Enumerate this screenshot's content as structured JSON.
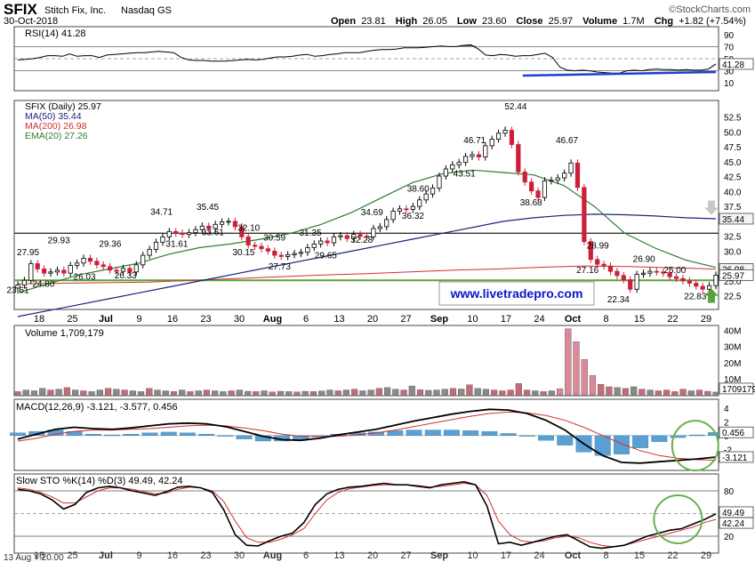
{
  "header": {
    "symbol": "SFIX",
    "company": "Stitch Fix, Inc.",
    "exchange": "Nasdaq GS",
    "date": "30-Oct-2018",
    "open_label": "Open",
    "open": "23.81",
    "high_label": "High",
    "high": "26.05",
    "low_label": "Low",
    "low": "23.60",
    "close_label": "Close",
    "close": "25.97",
    "volume_label": "Volume",
    "volume": "1.7M",
    "chg_label": "Chg",
    "chg": "+1.82 (+7.54%)",
    "watermark": "©StockCharts.com"
  },
  "colors": {
    "up": "#000000",
    "down": "#cc1f3a",
    "ma50": "#1a237e",
    "ma200": "#d32f2f",
    "ema20": "#2e7d32",
    "support": "#5aa33a",
    "resistance": "#333333",
    "rsi_fill": "#4a7a52",
    "rsi_trend": "#1f3fd1",
    "macd_hist": "#5aa0d2",
    "circle": "#6ab04c",
    "arrow_up": "#5aa33a",
    "arrow_down": "#c8c8c8",
    "link": "#0a14c8"
  },
  "x_axis": {
    "labels": [
      "18",
      "25",
      "Jul",
      "9",
      "16",
      "23",
      "30",
      "Aug",
      "6",
      "13",
      "20",
      "27",
      "Sep",
      "10",
      "17",
      "24",
      "Oct",
      "8",
      "15",
      "22",
      "29"
    ],
    "bold": [
      "Jul",
      "Aug",
      "Sep",
      "Oct"
    ],
    "footer_note": "13 Aug Y:20.00"
  },
  "chart_data": [
    {
      "type": "line",
      "panel": "rsi",
      "title": "RSI(14) 41.28",
      "yticks": [
        "90",
        "70",
        "50",
        "30",
        "10"
      ],
      "ylim": [
        0,
        100
      ],
      "levels": [
        70,
        30
      ],
      "last_label": "41.28",
      "series": [
        {
          "name": "RSI(14)",
          "values": [
            48,
            49,
            50,
            52,
            55,
            55,
            54,
            58,
            54,
            55,
            55,
            52,
            56,
            57,
            58,
            59,
            60,
            60,
            61,
            62,
            61,
            60,
            52,
            48,
            47,
            47,
            46,
            46,
            46,
            47,
            48,
            49,
            48,
            49,
            51,
            53,
            53,
            54,
            56,
            57,
            54,
            55,
            57,
            58,
            60,
            60,
            60,
            62,
            64,
            65,
            65,
            66,
            68,
            68,
            68,
            69,
            70,
            71,
            70,
            70,
            72,
            73,
            66,
            56,
            55,
            57,
            56,
            54,
            55,
            55,
            57,
            59,
            52,
            36,
            31,
            30,
            31,
            30,
            28,
            27,
            26,
            26,
            30,
            31,
            30,
            32,
            33,
            32,
            32,
            31,
            32,
            31,
            31,
            33,
            41.28
          ]
        }
      ],
      "annotation": {
        "type": "trendline",
        "from": [
          68,
          22
        ],
        "to": [
          94,
          28
        ]
      }
    },
    {
      "type": "candlestick",
      "panel": "price",
      "legend": [
        "SFIX (Daily) 25.97",
        "MA(50) 35.44",
        "MA(200) 26.98",
        "EMA(20) 27.26"
      ],
      "yticks": [
        "52.5",
        "50.0",
        "47.5",
        "45.0",
        "42.5",
        "40.0",
        "37.5",
        "32.5",
        "30.0",
        "27.5",
        "25.0",
        "22.5"
      ],
      "ylim": [
        20.5,
        55
      ],
      "close": [
        24.3,
        25.1,
        27.9,
        27.0,
        26.3,
        26.5,
        26.8,
        26.3,
        27.6,
        28.0,
        28.8,
        28.3,
        27.7,
        27.4,
        26.8,
        26.6,
        27.1,
        26.5,
        27.7,
        29.3,
        30.3,
        31.5,
        32.4,
        33.3,
        33.0,
        32.8,
        33.1,
        33.6,
        34.2,
        33.8,
        34.5,
        34.9,
        35.0,
        34.1,
        32.4,
        31.0,
        30.8,
        30.4,
        30.0,
        29.3,
        29.1,
        29.4,
        29.6,
        29.8,
        30.6,
        31.2,
        31.7,
        31.4,
        32.4,
        32.6,
        32.1,
        32.8,
        32.5,
        32.4,
        33.8,
        34.1,
        35.3,
        36.7,
        37.1,
        37.0,
        37.5,
        38.6,
        39.6,
        40.6,
        42.6,
        43.8,
        44.5,
        44.9,
        45.9,
        46.2,
        45.8,
        47.7,
        48.8,
        49.8,
        50.3,
        47.9,
        43.3,
        41.6,
        40.1,
        39.0,
        41.8,
        41.9,
        42.3,
        43.1,
        44.8,
        40.7,
        31.6,
        28.6,
        27.8,
        27.5,
        26.6,
        25.9,
        25.2,
        23.6,
        26.1,
        26.3,
        26.6,
        26.5,
        26.3,
        25.7,
        25.4,
        25.0,
        24.6,
        24.1,
        23.6,
        24.2,
        25.97
      ],
      "ma50": [
        19,
        20,
        21,
        22,
        23,
        24,
        25,
        26,
        27,
        28,
        29,
        30,
        31,
        32,
        33,
        34,
        35,
        35.6,
        36,
        36.2,
        36.1,
        35.9,
        35.6,
        35.44
      ],
      "ma200": [
        24.5,
        24.6,
        24.7,
        24.8,
        25.1,
        25.4,
        25.7,
        26.0,
        26.2,
        26.5,
        26.8,
        27.0,
        27.3,
        27.5,
        27.4,
        27.2,
        26.98
      ],
      "ema20": [
        23,
        24.5,
        26,
        27,
        28,
        29.5,
        30.6,
        31.2,
        32,
        33,
        34.5,
        36.5,
        39,
        41.5,
        43,
        43.6,
        43.2,
        42.8,
        41,
        37.5,
        33,
        30.5,
        28.5,
        27.26
      ],
      "labels": [
        {
          "text": "23.61",
          "i": 0,
          "v": 23.0
        },
        {
          "text": "27.95",
          "i": 2,
          "v": 29.3
        },
        {
          "text": "24.80",
          "i": 5,
          "v": 24.0
        },
        {
          "text": "29.93",
          "i": 8,
          "v": 31.3
        },
        {
          "text": "26.03",
          "i": 13,
          "v": 25.2
        },
        {
          "text": "29.36",
          "i": 18,
          "v": 30.7
        },
        {
          "text": "26.33",
          "i": 21,
          "v": 25.4
        },
        {
          "text": "34.71",
          "i": 28,
          "v": 36.1
        },
        {
          "text": "31.61",
          "i": 31,
          "v": 30.7
        },
        {
          "text": "35.45",
          "i": 37,
          "v": 36.9
        },
        {
          "text": "33.61",
          "i": 38,
          "v": 32.7
        },
        {
          "text": "32.10",
          "i": 45,
          "v": 33.4
        },
        {
          "text": "30.15",
          "i": 44,
          "v": 29.3
        },
        {
          "text": "30.59",
          "i": 50,
          "v": 31.8
        },
        {
          "text": "27.73",
          "i": 51,
          "v": 26.9
        },
        {
          "text": "31.35",
          "i": 57,
          "v": 32.6
        },
        {
          "text": "29.65",
          "i": 60,
          "v": 28.8
        },
        {
          "text": "34.69",
          "i": 69,
          "v": 36.0
        },
        {
          "text": "32.28",
          "i": 67,
          "v": 31.4
        },
        {
          "text": "38.60",
          "i": 78,
          "v": 40.0
        },
        {
          "text": "36.32",
          "i": 77,
          "v": 35.4
        },
        {
          "text": "46.71",
          "i": 89,
          "v": 48.1
        },
        {
          "text": "43.51",
          "i": 87,
          "v": 42.5
        },
        {
          "text": "52.44",
          "i": 97,
          "v": 53.8
        },
        {
          "text": "38.68",
          "i": 100,
          "v": 37.7
        },
        {
          "text": "46.67",
          "i": 107,
          "v": 48.1
        },
        {
          "text": "28.99",
          "i": 113,
          "v": 30.4
        },
        {
          "text": "27.16",
          "i": 111,
          "v": 26.3
        },
        {
          "text": "22.34",
          "i": 117,
          "v": 21.4
        },
        {
          "text": "26.90",
          "i": 122,
          "v": 28.2
        },
        {
          "text": "25.00",
          "i": 128,
          "v": 26.3
        },
        {
          "text": "22.83",
          "i": 132,
          "v": 21.9
        }
      ],
      "levels": {
        "resistance": 33.0,
        "support": 25.1
      },
      "last_labels": [
        {
          "text": "35.44",
          "v": 35.44
        },
        {
          "text": "26.98",
          "v": 27.0
        },
        {
          "text": "25.97",
          "v": 25.97
        }
      ],
      "watermark_link": "www.livetradepro.com"
    },
    {
      "type": "bar",
      "panel": "volume",
      "title": "Volume 1,709,179",
      "yticks": [
        "40M",
        "30M",
        "20M",
        "10M"
      ],
      "ylim": [
        0,
        42
      ],
      "last_label": "1709179",
      "values": [
        2,
        3,
        2.5,
        4,
        3,
        3.5,
        4.5,
        3,
        2.5,
        2,
        3,
        4,
        3.5,
        3,
        2.5,
        2,
        4,
        3,
        2.5,
        2,
        3,
        2,
        2.5,
        3,
        2.5,
        2,
        2.5,
        3,
        2.2,
        2,
        2.5,
        1.8,
        2.2,
        2,
        1.8,
        2.2,
        2,
        2.4,
        3,
        2.5,
        3,
        3.5,
        2.5,
        3,
        4,
        4.5,
        3.5,
        3,
        5.5,
        3.2,
        2.8,
        3,
        3.5,
        4,
        3.6,
        6.2,
        4,
        3.5,
        3,
        2.5,
        3,
        7,
        3,
        2.5,
        2,
        2.5,
        3.8,
        41,
        33,
        22,
        12,
        6.5,
        5,
        4.5,
        4,
        5,
        3.5,
        3,
        2.5,
        3,
        2,
        3.5,
        2.5,
        3,
        2.2,
        1.7
      ],
      "up": [
        0,
        1,
        1,
        1,
        0,
        1,
        0,
        1,
        0,
        1,
        1,
        0,
        1,
        0,
        1,
        1,
        0,
        1,
        1,
        0,
        1,
        0,
        1,
        0,
        1,
        1,
        0,
        1,
        1,
        0,
        1,
        0,
        1,
        1,
        0,
        1,
        0,
        1,
        1,
        0,
        1,
        0,
        1,
        1,
        0,
        1,
        1,
        0,
        1,
        0,
        1,
        1,
        1,
        0,
        1,
        0,
        1,
        1,
        0,
        0,
        0,
        0,
        0,
        1,
        0,
        1,
        0,
        0,
        0,
        0,
        0,
        0,
        0,
        1,
        0,
        1,
        0,
        1,
        0,
        0,
        0,
        0,
        1,
        0,
        0,
        1
      ]
    },
    {
      "type": "line",
      "panel": "macd",
      "title": "MACD(12,26,9) -3.121, -3.577, 0.456",
      "yticks": [
        "4",
        "2",
        "0",
        "-2"
      ],
      "ylim": [
        -4.8,
        5
      ],
      "last_labels": [
        {
          "text": "0.456",
          "v": 0.456
        },
        {
          "text": "-3.121",
          "v": -3.121
        }
      ],
      "series": [
        {
          "name": "MACD(12,26,9)",
          "values": [
            -0.5,
            0.2,
            0.9,
            1.2,
            1.0,
            0.9,
            1.1,
            1.4,
            1.7,
            1.8,
            1.7,
            1.3,
            0.6,
            -0.1,
            -0.6,
            -0.7,
            -0.4,
            0.1,
            0.5,
            0.9,
            1.5,
            2.1,
            2.6,
            3.1,
            3.5,
            3.8,
            3.7,
            3.2,
            2.2,
            0.8,
            -1.2,
            -2.9,
            -3.9,
            -4.0,
            -3.8,
            -3.6,
            -3.4,
            -3.121
          ]
        },
        {
          "name": "Signal",
          "values": [
            -0.8,
            -0.4,
            0.2,
            0.6,
            0.8,
            0.8,
            0.9,
            1.0,
            1.2,
            1.4,
            1.5,
            1.4,
            1.1,
            0.7,
            0.2,
            -0.1,
            -0.2,
            -0.1,
            0.1,
            0.4,
            0.8,
            1.3,
            1.8,
            2.3,
            2.8,
            3.2,
            3.4,
            3.3,
            2.9,
            2.2,
            1.2,
            0.0,
            -1.2,
            -2.2,
            -2.9,
            -3.3,
            -3.5,
            -3.577
          ]
        }
      ],
      "hist": [
        0.4,
        0.6,
        0.8,
        0.6,
        0.2,
        0.1,
        0.2,
        0.4,
        0.5,
        0.4,
        0.2,
        -0.1,
        -0.5,
        -0.8,
        -0.8,
        -0.6,
        -0.2,
        0.2,
        0.4,
        0.5,
        0.7,
        0.8,
        0.8,
        0.8,
        0.7,
        0.6,
        0.3,
        -0.1,
        -0.7,
        -1.4,
        -2.4,
        -2.9,
        -2.7,
        -1.8,
        -0.9,
        -0.3,
        0.1,
        0.456
      ],
      "annotation": {
        "type": "circle",
        "i": 36,
        "v": -1.2
      }
    },
    {
      "type": "line",
      "panel": "stochastic",
      "title": "Slow STO %K(14) %D(3) 49.49, 42.24",
      "yticks": [
        "80",
        "50",
        "20"
      ],
      "ylim": [
        0,
        100
      ],
      "levels": [
        80,
        20
      ],
      "last_labels": [
        {
          "text": "49.49",
          "v": 49.49
        },
        {
          "text": "42.24",
          "v": 42.24
        }
      ],
      "series": [
        {
          "name": "%K(14)",
          "values": [
            82,
            80,
            76,
            68,
            56,
            62,
            78,
            84,
            86,
            84,
            80,
            77,
            74,
            79,
            85,
            86,
            84,
            78,
            55,
            22,
            8,
            7,
            14,
            20,
            24,
            38,
            62,
            76,
            82,
            85,
            86,
            88,
            90,
            88,
            88,
            86,
            84,
            88,
            90,
            92,
            88,
            60,
            10,
            12,
            8,
            12,
            16,
            20,
            22,
            14,
            6,
            4,
            6,
            8,
            14,
            20,
            24,
            28,
            30,
            36,
            42,
            49.49
          ]
        },
        {
          "name": "%D(3)",
          "values": [
            84,
            82,
            78,
            72,
            64,
            64,
            72,
            80,
            84,
            84,
            82,
            79,
            76,
            77,
            82,
            85,
            84,
            80,
            66,
            40,
            18,
            12,
            12,
            16,
            22,
            30,
            50,
            68,
            78,
            83,
            85,
            87,
            88,
            88,
            88,
            87,
            85,
            86,
            88,
            90,
            88,
            74,
            40,
            22,
            14,
            12,
            14,
            18,
            20,
            18,
            12,
            8,
            6,
            8,
            12,
            16,
            20,
            24,
            28,
            32,
            38,
            42.24
          ]
        }
      ],
      "annotation": {
        "type": "circle",
        "i": 58,
        "v": 40
      }
    }
  ]
}
